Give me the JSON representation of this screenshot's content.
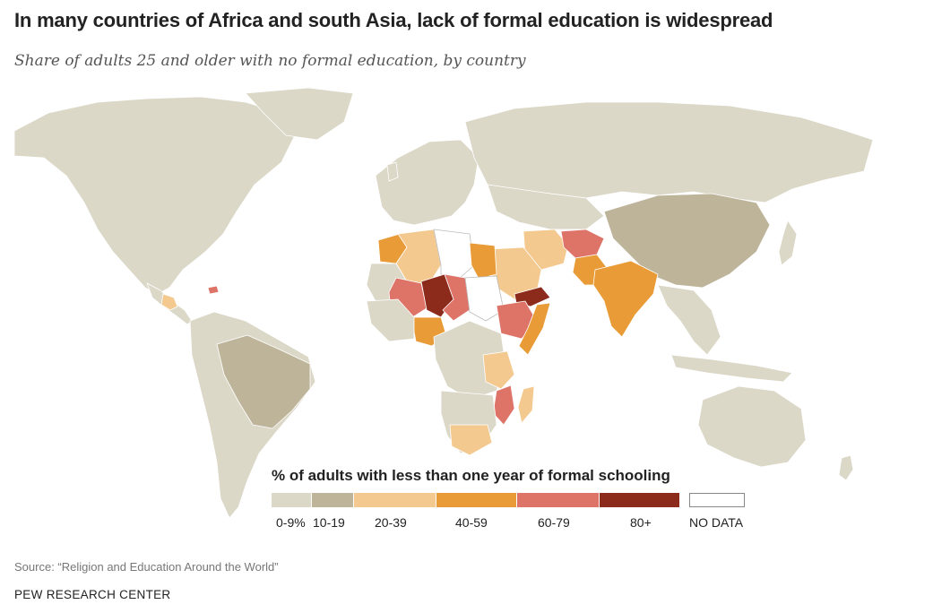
{
  "header": {
    "title": "In many countries of Africa and south Asia, lack of formal education is widespread",
    "subtitle": "Share of adults 25 and older with no formal education, by country"
  },
  "legend": {
    "title": "% of adults with less than one year of formal schooling",
    "bins": [
      {
        "label": "0-9%",
        "color": "#dbd8c8"
      },
      {
        "label": "10-19",
        "color": "#bdb49a"
      },
      {
        "label": "20-39",
        "color": "#f4c98f"
      },
      {
        "label": "40-59",
        "color": "#e89b36"
      },
      {
        "label": "60-79",
        "color": "#de7368"
      },
      {
        "label": "80+",
        "color": "#8c2a1c"
      }
    ],
    "nodata": {
      "label": "NO DATA",
      "color": "#ffffff"
    }
  },
  "footer": {
    "source": "Source: “Religion and Education Around the World”",
    "brand": "PEW RESEARCH CENTER"
  },
  "chart_data": {
    "type": "choropleth",
    "regions": [
      {
        "region": "North America",
        "bin": "0-9%"
      },
      {
        "region": "Europe",
        "bin": "0-9%"
      },
      {
        "region": "Russia",
        "bin": "0-9%"
      },
      {
        "region": "Australia",
        "bin": "0-9%"
      },
      {
        "region": "Brazil",
        "bin": "10-19"
      },
      {
        "region": "China",
        "bin": "10-19"
      },
      {
        "region": "Guatemala",
        "bin": "20-39"
      },
      {
        "region": "Haiti",
        "bin": "60-79"
      },
      {
        "region": "India",
        "bin": "40-59"
      },
      {
        "region": "Pakistan",
        "bin": "40-59"
      },
      {
        "region": "Afghanistan",
        "bin": "60-79"
      },
      {
        "region": "Yemen",
        "bin": "80+"
      },
      {
        "region": "Niger",
        "bin": "80+"
      },
      {
        "region": "Mali",
        "bin": "60-79"
      },
      {
        "region": "Chad",
        "bin": "60-79"
      },
      {
        "region": "Nigeria",
        "bin": "40-59"
      },
      {
        "region": "Ethiopia",
        "bin": "60-79"
      },
      {
        "region": "Egypt",
        "bin": "40-59"
      },
      {
        "region": "Morocco",
        "bin": "40-59"
      },
      {
        "region": "Algeria",
        "bin": "20-39"
      },
      {
        "region": "Saudi Arabia",
        "bin": "20-39"
      },
      {
        "region": "Iran",
        "bin": "20-39"
      },
      {
        "region": "Mozambique",
        "bin": "60-79"
      },
      {
        "region": "Madagascar",
        "bin": "20-39"
      },
      {
        "region": "South Africa",
        "bin": "20-39"
      },
      {
        "region": "Tanzania",
        "bin": "20-39"
      },
      {
        "region": "Libya",
        "bin": "NO DATA"
      },
      {
        "region": "Sudan",
        "bin": "NO DATA"
      },
      {
        "region": "Somalia",
        "bin": "40-59"
      }
    ]
  }
}
